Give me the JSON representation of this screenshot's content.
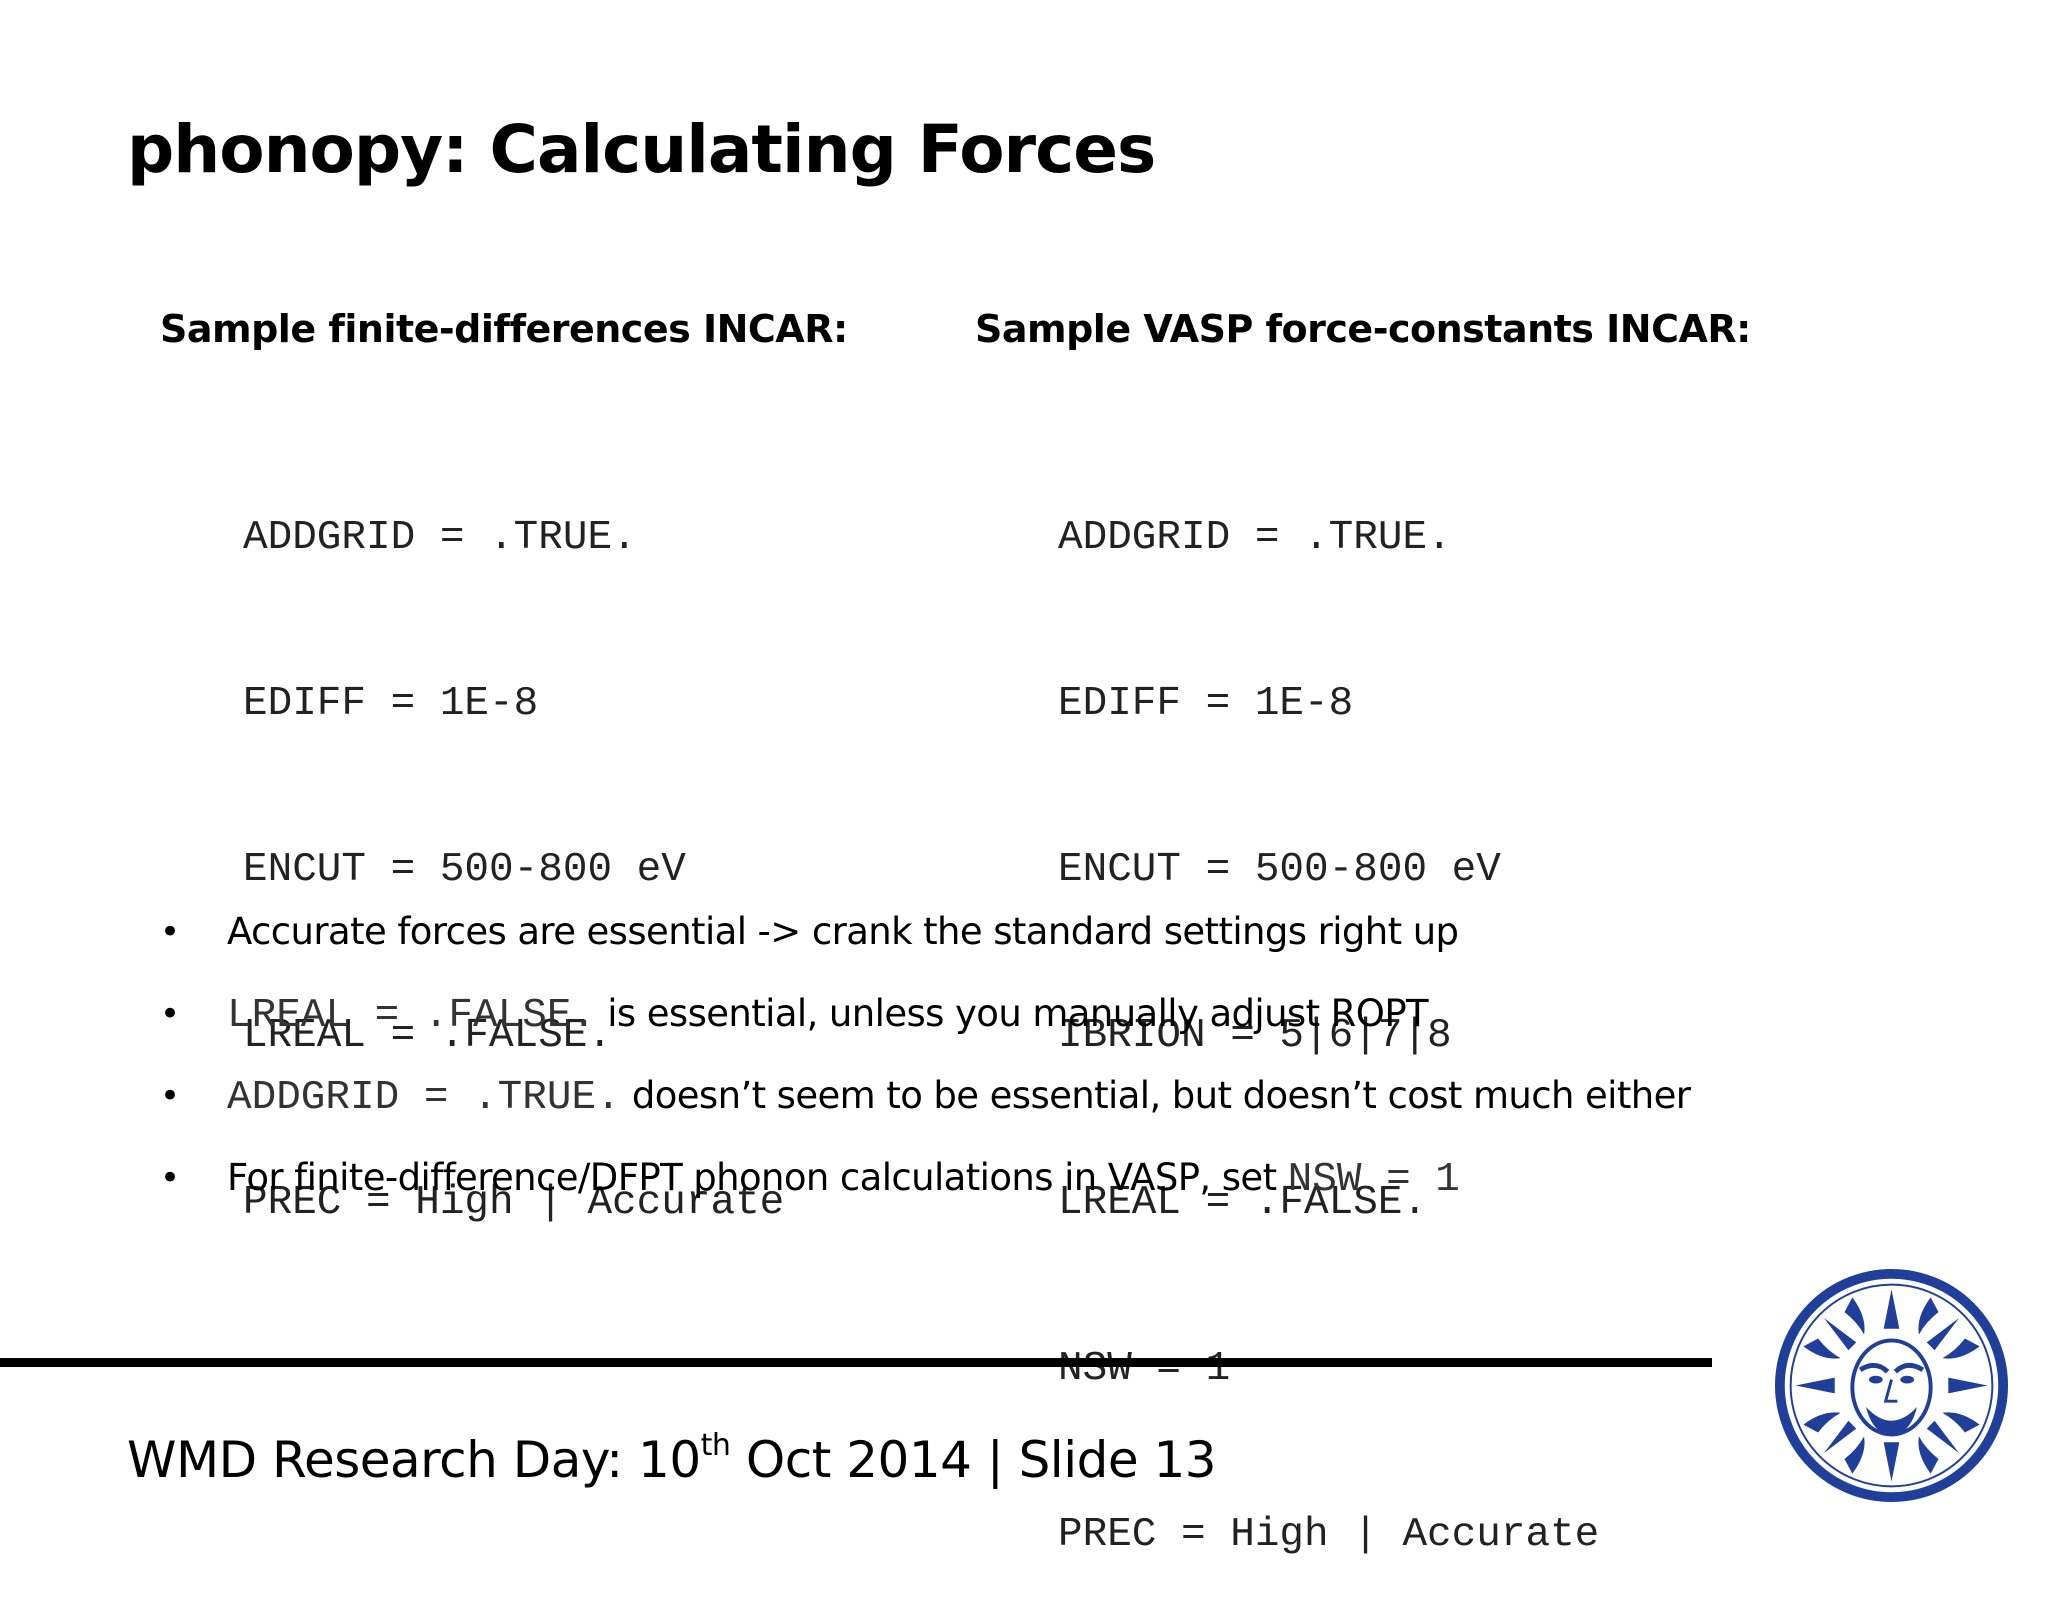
{
  "slide": {
    "title": "phonopy: Calculating Forces"
  },
  "left_column": {
    "heading": "Sample finite-differences INCAR:",
    "lines": [
      "ADDGRID = .TRUE.",
      "EDIFF = 1E-8",
      "ENCUT = 500-800 eV",
      "LREAL = .FALSE.",
      "PREC = High | Accurate"
    ]
  },
  "right_column": {
    "heading": "Sample VASP force-constants INCAR:",
    "lines": [
      "ADDGRID = .TRUE.",
      "EDIFF = 1E-8",
      "ENCUT = 500-800 eV",
      "IBRION = 5|6|7|8",
      "LREAL = .FALSE.",
      "NSW = 1",
      "PREC = High | Accurate"
    ]
  },
  "bullets": {
    "marker": "•",
    "item1": {
      "text": "Accurate forces are essential -> crank the standard settings right up"
    },
    "item2": {
      "code": "LREAL = .FALSE.",
      "text": " is essential, unless you manually adjust ROPT"
    },
    "item3": {
      "code": "ADDGRID = .TRUE.",
      "text": " doesn’t seem to be essential, but doesn’t cost much either"
    },
    "item4": {
      "text": "For finite-difference/DFPT phonon calculations in VASP, set ",
      "code": "NSW = 1"
    }
  },
  "footer": {
    "prefix": "WMD Research Day: 10",
    "superscript": "th",
    "suffix": " Oct 2014 | Slide 13"
  },
  "colors": {
    "text": "#000000",
    "code_text": "#222222",
    "logo_blue": "#1f3f9a"
  },
  "logo": {
    "icon": "university-seal-icon"
  }
}
